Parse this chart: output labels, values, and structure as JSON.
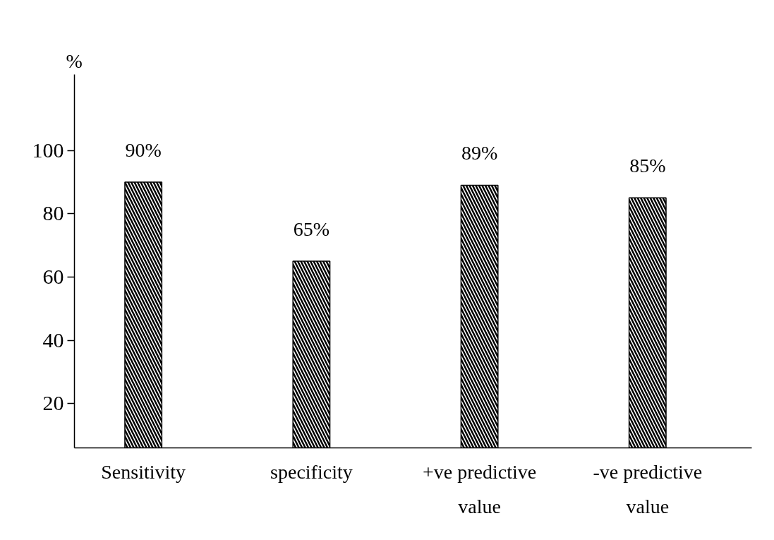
{
  "chart_data": {
    "type": "bar",
    "ylabel": "%",
    "categories": [
      "Sensitivity",
      "specificity",
      "+ve predictive value",
      "-ve predictive value"
    ],
    "values": [
      90,
      65,
      89,
      85
    ],
    "value_labels": [
      "90%",
      "65%",
      "89%",
      "85%"
    ],
    "color": "#000000",
    "ylim": [
      6,
      124
    ],
    "yticks": [
      20,
      40,
      60,
      80,
      100
    ],
    "grid": false
  }
}
